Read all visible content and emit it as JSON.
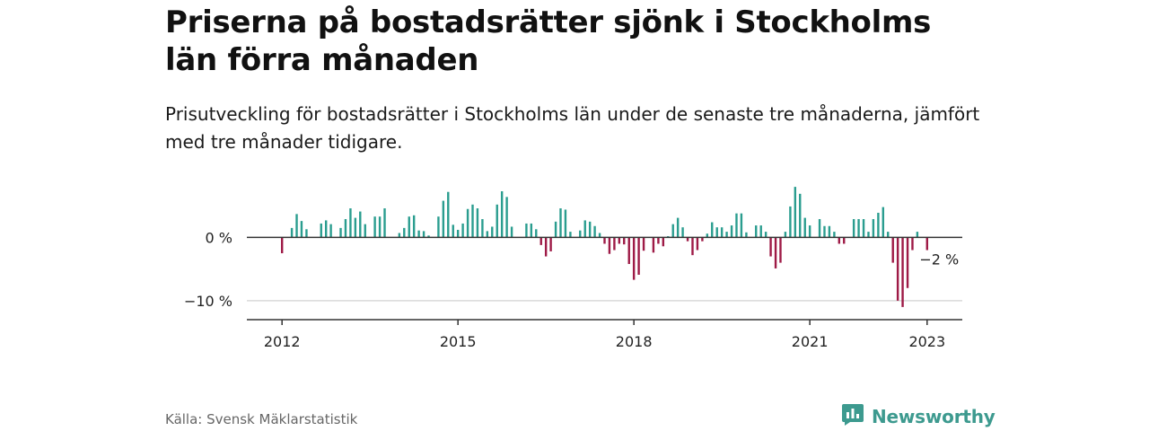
{
  "title": "Priserna på bostadsrätter sjönk i Stockholms län förra månaden",
  "subtitle": "Prisutveckling för bostadsrätter i Stockholms län under de senaste tre månaderna, jämfört med tre månader tidigare.",
  "source": "Källa: Svensk Mäklarstatistik",
  "brand": "Newsworthy",
  "colors": {
    "positive": "#2a9d8f",
    "negative": "#9e1a46",
    "axis": "#333333",
    "grid": "#d9d9d9",
    "brand": "#3d9a8f"
  },
  "chart_data": {
    "type": "bar",
    "unit": "%",
    "ylim": [
      -13,
      10
    ],
    "yticks": [
      {
        "value": 0,
        "label": "0 %"
      },
      {
        "value": -10,
        "label": "−10 %"
      }
    ],
    "xticks": [
      {
        "value": 2012,
        "label": "2012"
      },
      {
        "value": 2015,
        "label": "2015"
      },
      {
        "value": 2018,
        "label": "2018"
      },
      {
        "value": 2021,
        "label": "2021"
      },
      {
        "value": 2023,
        "label": "2023"
      }
    ],
    "xlim": [
      2011.4,
      2023.6
    ],
    "grid": true,
    "annotation": {
      "x": 2022.917,
      "value": -2,
      "label": "−2 %"
    },
    "series": [
      {
        "values": [
          {
            "x": 2012.0,
            "y": -2.5
          },
          {
            "x": 2012.167,
            "y": 1.5
          },
          {
            "x": 2012.25,
            "y": 3.7
          },
          {
            "x": 2012.333,
            "y": 2.6
          },
          {
            "x": 2012.417,
            "y": 1.3
          },
          {
            "x": 2012.667,
            "y": 2.2
          },
          {
            "x": 2012.75,
            "y": 2.7
          },
          {
            "x": 2012.833,
            "y": 2.1
          },
          {
            "x": 2013.0,
            "y": 1.5
          },
          {
            "x": 2013.083,
            "y": 2.9
          },
          {
            "x": 2013.167,
            "y": 4.6
          },
          {
            "x": 2013.25,
            "y": 3.1
          },
          {
            "x": 2013.333,
            "y": 4.1
          },
          {
            "x": 2013.417,
            "y": 2.1
          },
          {
            "x": 2013.583,
            "y": 3.3
          },
          {
            "x": 2013.667,
            "y": 3.3
          },
          {
            "x": 2013.75,
            "y": 4.6
          },
          {
            "x": 2014.0,
            "y": 0.7
          },
          {
            "x": 2014.083,
            "y": 1.5
          },
          {
            "x": 2014.167,
            "y": 3.3
          },
          {
            "x": 2014.25,
            "y": 3.5
          },
          {
            "x": 2014.333,
            "y": 1.1
          },
          {
            "x": 2014.417,
            "y": 1.0
          },
          {
            "x": 2014.5,
            "y": 0.3
          },
          {
            "x": 2014.667,
            "y": 3.3
          },
          {
            "x": 2014.75,
            "y": 5.8
          },
          {
            "x": 2014.833,
            "y": 7.2
          },
          {
            "x": 2014.917,
            "y": 2.0
          },
          {
            "x": 2015.0,
            "y": 1.2
          },
          {
            "x": 2015.083,
            "y": 2.2
          },
          {
            "x": 2015.167,
            "y": 4.5
          },
          {
            "x": 2015.25,
            "y": 5.2
          },
          {
            "x": 2015.333,
            "y": 4.6
          },
          {
            "x": 2015.417,
            "y": 2.9
          },
          {
            "x": 2015.5,
            "y": 1.0
          },
          {
            "x": 2015.583,
            "y": 1.7
          },
          {
            "x": 2015.667,
            "y": 5.2
          },
          {
            "x": 2015.75,
            "y": 7.3
          },
          {
            "x": 2015.833,
            "y": 6.4
          },
          {
            "x": 2015.917,
            "y": 1.7
          },
          {
            "x": 2016.167,
            "y": 2.2
          },
          {
            "x": 2016.25,
            "y": 2.2
          },
          {
            "x": 2016.333,
            "y": 1.3
          },
          {
            "x": 2016.417,
            "y": -1.2
          },
          {
            "x": 2016.5,
            "y": -3.0
          },
          {
            "x": 2016.583,
            "y": -2.2
          },
          {
            "x": 2016.667,
            "y": 2.5
          },
          {
            "x": 2016.75,
            "y": 4.6
          },
          {
            "x": 2016.833,
            "y": 4.4
          },
          {
            "x": 2016.917,
            "y": 0.9
          },
          {
            "x": 2017.083,
            "y": 1.1
          },
          {
            "x": 2017.167,
            "y": 2.7
          },
          {
            "x": 2017.25,
            "y": 2.5
          },
          {
            "x": 2017.333,
            "y": 1.8
          },
          {
            "x": 2017.417,
            "y": 0.7
          },
          {
            "x": 2017.5,
            "y": -1.0
          },
          {
            "x": 2017.583,
            "y": -2.6
          },
          {
            "x": 2017.667,
            "y": -2.0
          },
          {
            "x": 2017.75,
            "y": -1.0
          },
          {
            "x": 2017.833,
            "y": -1.1
          },
          {
            "x": 2017.917,
            "y": -4.2
          },
          {
            "x": 2018.0,
            "y": -6.7
          },
          {
            "x": 2018.083,
            "y": -5.9
          },
          {
            "x": 2018.167,
            "y": -2.1
          },
          {
            "x": 2018.333,
            "y": -2.4
          },
          {
            "x": 2018.417,
            "y": -1.0
          },
          {
            "x": 2018.5,
            "y": -1.4
          },
          {
            "x": 2018.583,
            "y": 0.2
          },
          {
            "x": 2018.667,
            "y": 2.1
          },
          {
            "x": 2018.75,
            "y": 3.1
          },
          {
            "x": 2018.833,
            "y": 1.6
          },
          {
            "x": 2018.917,
            "y": -0.6
          },
          {
            "x": 2019.0,
            "y": -2.8
          },
          {
            "x": 2019.083,
            "y": -2.0
          },
          {
            "x": 2019.167,
            "y": -0.6
          },
          {
            "x": 2019.25,
            "y": 0.6
          },
          {
            "x": 2019.333,
            "y": 2.4
          },
          {
            "x": 2019.417,
            "y": 1.6
          },
          {
            "x": 2019.5,
            "y": 1.6
          },
          {
            "x": 2019.583,
            "y": 0.9
          },
          {
            "x": 2019.667,
            "y": 1.9
          },
          {
            "x": 2019.75,
            "y": 3.8
          },
          {
            "x": 2019.833,
            "y": 3.8
          },
          {
            "x": 2019.917,
            "y": 0.8
          },
          {
            "x": 2020.083,
            "y": 1.9
          },
          {
            "x": 2020.167,
            "y": 1.9
          },
          {
            "x": 2020.25,
            "y": 0.9
          },
          {
            "x": 2020.333,
            "y": -3.0
          },
          {
            "x": 2020.417,
            "y": -4.9
          },
          {
            "x": 2020.5,
            "y": -4.0
          },
          {
            "x": 2020.583,
            "y": 0.9
          },
          {
            "x": 2020.667,
            "y": 4.9
          },
          {
            "x": 2020.75,
            "y": 8.0
          },
          {
            "x": 2020.833,
            "y": 6.9
          },
          {
            "x": 2020.917,
            "y": 3.1
          },
          {
            "x": 2021.0,
            "y": 1.9
          },
          {
            "x": 2021.167,
            "y": 2.9
          },
          {
            "x": 2021.25,
            "y": 1.8
          },
          {
            "x": 2021.333,
            "y": 1.8
          },
          {
            "x": 2021.417,
            "y": 0.9
          },
          {
            "x": 2021.5,
            "y": -1.0
          },
          {
            "x": 2021.583,
            "y": -1.0
          },
          {
            "x": 2021.75,
            "y": 2.9
          },
          {
            "x": 2021.833,
            "y": 2.9
          },
          {
            "x": 2021.917,
            "y": 2.9
          },
          {
            "x": 2022.0,
            "y": 0.9
          },
          {
            "x": 2022.083,
            "y": 2.9
          },
          {
            "x": 2022.167,
            "y": 3.9
          },
          {
            "x": 2022.25,
            "y": 4.8
          },
          {
            "x": 2022.333,
            "y": 0.9
          },
          {
            "x": 2022.417,
            "y": -4.0
          },
          {
            "x": 2022.5,
            "y": -10.0
          },
          {
            "x": 2022.583,
            "y": -11.0
          },
          {
            "x": 2022.667,
            "y": -8.0
          },
          {
            "x": 2022.75,
            "y": -2.0
          },
          {
            "x": 2022.833,
            "y": 0.9
          },
          {
            "x": 2023.0,
            "y": -2.0
          }
        ]
      }
    ]
  }
}
